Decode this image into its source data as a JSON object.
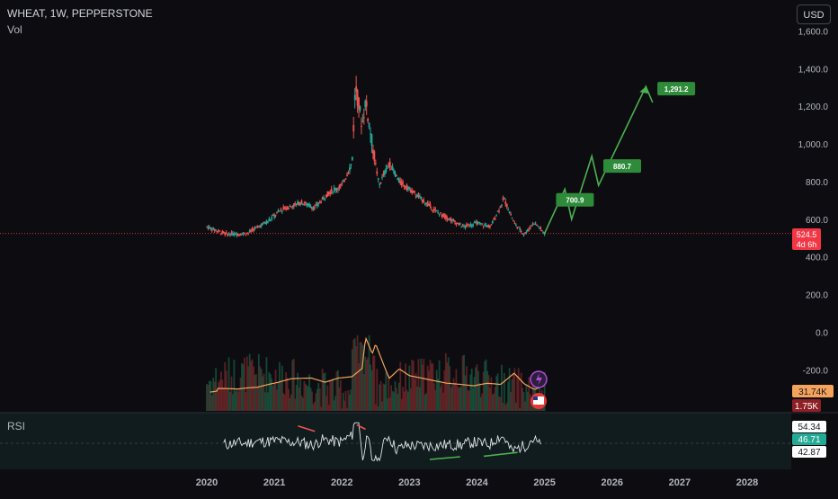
{
  "header": {
    "symbol_line": "WHEAT, 1W, PEPPERSTONE",
    "indicator": "Vol",
    "currency": "USD"
  },
  "rsi_pane": {
    "label": "RSI"
  },
  "colors": {
    "background": "#0d0d11",
    "up": "#26a69a",
    "down": "#ef5350",
    "target": "#2e8b3a",
    "projection": "#4caf50",
    "vol_ma": "#f5a25d",
    "rsi_line": "#e0e3eb",
    "rsi_bg": "#101c1e",
    "badge_red": "#f23645",
    "badge_orange": "#f5a25d",
    "badge_darkred": "#8e1f25",
    "badge_teal": "#22ab94",
    "divergence_bear": "#ef5350",
    "divergence_bull": "#4caf50"
  },
  "chart_data": {
    "type": "candlestick",
    "title": "WHEAT, 1W, PEPPERSTONE",
    "price_axis": {
      "ticks": [
        "1,600.0",
        "1,400.0",
        "1,200.0",
        "1,000.0",
        "800.0",
        "600.0",
        "400.0",
        "200.0",
        "0.0",
        "-200.0"
      ],
      "ylim": [
        -250,
        1650
      ]
    },
    "time_axis": {
      "ticks": [
        "2020",
        "2021",
        "2022",
        "2023",
        "2024",
        "2025",
        "2026",
        "2027",
        "2028"
      ]
    },
    "price_path": [
      {
        "date": "2020.0",
        "price": 560
      },
      {
        "date": "2020.3",
        "price": 520
      },
      {
        "date": "2020.6",
        "price": 525
      },
      {
        "date": "2020.9",
        "price": 590
      },
      {
        "date": "2021.1",
        "price": 650
      },
      {
        "date": "2021.4",
        "price": 690
      },
      {
        "date": "2021.6",
        "price": 660
      },
      {
        "date": "2021.8",
        "price": 740
      },
      {
        "date": "2022.0",
        "price": 780
      },
      {
        "date": "2022.15",
        "price": 900
      },
      {
        "date": "2022.2",
        "price": 1310
      },
      {
        "date": "2022.3",
        "price": 1100
      },
      {
        "date": "2022.35",
        "price": 1230
      },
      {
        "date": "2022.45",
        "price": 1000
      },
      {
        "date": "2022.55",
        "price": 780
      },
      {
        "date": "2022.7",
        "price": 900
      },
      {
        "date": "2022.85",
        "price": 800
      },
      {
        "date": "2023.0",
        "price": 760
      },
      {
        "date": "2023.2",
        "price": 700
      },
      {
        "date": "2023.4",
        "price": 640
      },
      {
        "date": "2023.6",
        "price": 600
      },
      {
        "date": "2023.8",
        "price": 560
      },
      {
        "date": "2024.0",
        "price": 580
      },
      {
        "date": "2024.2",
        "price": 560
      },
      {
        "date": "2024.4",
        "price": 710
      },
      {
        "date": "2024.55",
        "price": 580
      },
      {
        "date": "2024.7",
        "price": 520
      },
      {
        "date": "2024.85",
        "price": 585
      },
      {
        "date": "2025.0",
        "price": 524.5
      }
    ],
    "last_price": {
      "value": "524.5",
      "countdown": "4d 6h"
    },
    "projection_path": [
      {
        "date": "2025.0",
        "price": 524.5
      },
      {
        "date": "2025.3",
        "price": 760
      },
      {
        "date": "2025.4",
        "price": 600
      },
      {
        "date": "2025.7",
        "price": 935
      },
      {
        "date": "2025.8",
        "price": 780
      },
      {
        "date": "2026.5",
        "price": 1305
      },
      {
        "date": "2026.6",
        "price": 1220
      }
    ],
    "targets": [
      {
        "label": "700.9",
        "date": "2025.45",
        "price": 700.9
      },
      {
        "label": "880.7",
        "date": "2026.15",
        "price": 880.7
      },
      {
        "label": "1,291.2",
        "date": "2026.95",
        "price": 1291.2
      }
    ],
    "volume": {
      "ma_value": "31.74K",
      "last_value": "1.75K"
    },
    "rsi": {
      "values": [
        "54.34",
        "46.71",
        "42.87"
      ],
      "levels": {
        "upper": 70,
        "mid": 50,
        "lower": 30
      }
    }
  }
}
